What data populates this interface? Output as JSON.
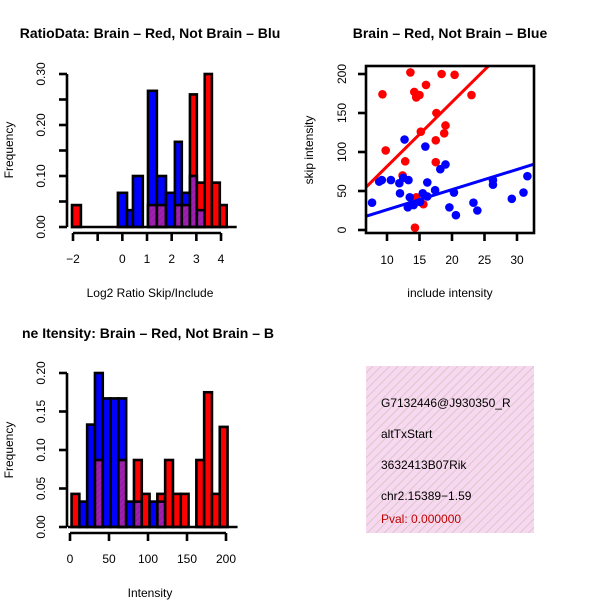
{
  "colors": {
    "red": "#ff0000",
    "blue": "#0000ff",
    "overlap": "#a020b0",
    "pval": "#c00000",
    "box_bg": "#f8d8f0"
  },
  "chart_data": [
    {
      "type": "bar",
      "title": "RatioData: Brain – Red, Not Brain – Blu",
      "xlabel": "Log2 Ratio Skip/Include",
      "ylabel": "Frequency",
      "xticks": [
        -2,
        -1,
        0,
        1,
        2,
        3,
        4
      ],
      "xtick_labels": [
        "−2",
        "",
        "0",
        "1",
        "2",
        "3",
        "4"
      ],
      "yticks": [
        0,
        0.05,
        0.1,
        0.15,
        0.2,
        0.25,
        0.3
      ],
      "ytick_labels": [
        "0.00",
        "",
        "0.10",
        "",
        "0.20",
        "",
        "0.30"
      ],
      "ylim": [
        0,
        0.3
      ],
      "series_names": [
        "Brain (red)",
        "Not Brain (blue)"
      ],
      "bins": [
        {
          "x0": -2.04,
          "x1": -1.68,
          "blue": 0,
          "red": 0.043
        },
        {
          "x0": -0.18,
          "x1": 0.19,
          "blue": 0.067,
          "red": 0
        },
        {
          "x0": 0.19,
          "x1": 0.43,
          "blue": 0.033,
          "red": 0
        },
        {
          "x0": 0.43,
          "x1": 0.83,
          "blue": 0.1,
          "red": 0
        },
        {
          "x0": 1.04,
          "x1": 1.4,
          "blue": 0.267,
          "red": 0.043
        },
        {
          "x0": 1.4,
          "x1": 1.77,
          "blue": 0.1,
          "red": 0.043
        },
        {
          "x0": 1.77,
          "x1": 2.13,
          "blue": 0.067,
          "red": 0
        },
        {
          "x0": 2.13,
          "x1": 2.41,
          "blue": 0.167,
          "red": 0.043
        },
        {
          "x0": 2.41,
          "x1": 2.74,
          "blue": 0.067,
          "red": 0.043
        },
        {
          "x0": 2.74,
          "x1": 3.02,
          "blue": 0.1,
          "red": 0.26
        },
        {
          "x0": 3.02,
          "x1": 3.34,
          "blue": 0.033,
          "red": 0.087
        },
        {
          "x0": 3.34,
          "x1": 3.63,
          "blue": 0,
          "red": 0.3
        },
        {
          "x0": 3.63,
          "x1": 3.95,
          "blue": 0,
          "red": 0.087
        },
        {
          "x0": 3.95,
          "x1": 4.23,
          "blue": 0,
          "red": 0.043
        }
      ]
    },
    {
      "type": "scatter",
      "title": "Brain – Red, Not Brain – Blue",
      "xlabel": "include intensity",
      "ylabel": "skip intensity",
      "xticks": [
        10,
        15,
        20,
        25,
        30
      ],
      "yticks": [
        0,
        50,
        100,
        150,
        200
      ],
      "xlim": [
        6.8,
        32.6
      ],
      "ylim": [
        -4,
        210
      ],
      "series": [
        {
          "name": "Brain",
          "color": "red",
          "points": [
            [
              9.3,
              174
            ],
            [
              9.8,
              102
            ],
            [
              13.6,
              202
            ],
            [
              14.2,
              177
            ],
            [
              15.0,
              173
            ],
            [
              14.5,
              170
            ],
            [
              16.0,
              186
            ],
            [
              18.4,
              200
            ],
            [
              20.4,
              199
            ],
            [
              23.0,
              173
            ],
            [
              17.6,
              150
            ],
            [
              15.2,
              126
            ],
            [
              19.0,
              134
            ],
            [
              18.8,
              124
            ],
            [
              17.5,
              115
            ],
            [
              12.8,
              88
            ],
            [
              17.5,
              87
            ],
            [
              12.4,
              70
            ],
            [
              14.5,
              42
            ],
            [
              15.6,
              33
            ],
            [
              14.3,
              3
            ]
          ],
          "fit": {
            "intercept": -1,
            "slope": 8.25
          }
        },
        {
          "name": "Not Brain",
          "color": "blue",
          "points": [
            [
              7.7,
              35
            ],
            [
              8.8,
              62
            ],
            [
              9.2,
              64
            ],
            [
              10.6,
              64
            ],
            [
              12.7,
              116
            ],
            [
              11.9,
              60
            ],
            [
              12.5,
              67
            ],
            [
              13.3,
              64
            ],
            [
              12.0,
              47
            ],
            [
              13.5,
              42
            ],
            [
              13.2,
              29
            ],
            [
              14.1,
              32
            ],
            [
              15.1,
              36
            ],
            [
              15.5,
              47
            ],
            [
              16.2,
              43
            ],
            [
              15.9,
              107
            ],
            [
              16.2,
              61
            ],
            [
              17.4,
              51
            ],
            [
              18.2,
              78
            ],
            [
              19.0,
              84
            ],
            [
              20.3,
              48
            ],
            [
              19.6,
              29
            ],
            [
              20.6,
              19
            ],
            [
              23.3,
              35
            ],
            [
              23.9,
              25
            ],
            [
              26.3,
              64
            ],
            [
              26.3,
              58
            ],
            [
              29.2,
              40
            ],
            [
              31.0,
              48
            ],
            [
              31.6,
              69
            ]
          ],
          "fit": {
            "intercept": 0.2,
            "slope": 2.58
          }
        }
      ]
    },
    {
      "type": "bar",
      "title": "ne Itensity: Brain – Red, Not Brain – B",
      "xlabel": "Intensity",
      "ylabel": "Frequency",
      "xticks": [
        0,
        50,
        100,
        150,
        200
      ],
      "xtick_labels": [
        "0",
        "50",
        "100",
        "150",
        "200"
      ],
      "yticks": [
        0,
        0.05,
        0.1,
        0.15,
        0.2
      ],
      "ytick_labels": [
        "0.00",
        "0.05",
        "0.10",
        "0.15",
        "0.20"
      ],
      "ylim": [
        0,
        0.2
      ],
      "bins": [
        {
          "x0": 2,
          "x1": 12,
          "blue": 0,
          "red": 0.043
        },
        {
          "x0": 12,
          "x1": 22,
          "blue": 0.033,
          "red": 0
        },
        {
          "x0": 22,
          "x1": 32,
          "blue": 0.133,
          "red": 0
        },
        {
          "x0": 32,
          "x1": 42,
          "blue": 0.2,
          "red": 0.087
        },
        {
          "x0": 42,
          "x1": 52,
          "blue": 0.167,
          "red": 0
        },
        {
          "x0": 52,
          "x1": 62,
          "blue": 0.167,
          "red": 0
        },
        {
          "x0": 62,
          "x1": 72,
          "blue": 0.167,
          "red": 0.087
        },
        {
          "x0": 72,
          "x1": 82,
          "blue": 0.033,
          "red": 0
        },
        {
          "x0": 82,
          "x1": 92,
          "blue": 0.033,
          "red": 0.087
        },
        {
          "x0": 92,
          "x1": 102,
          "blue": 0,
          "red": 0.043
        },
        {
          "x0": 102,
          "x1": 112,
          "blue": 0.033,
          "red": 0
        },
        {
          "x0": 112,
          "x1": 122,
          "blue": 0.033,
          "red": 0.043
        },
        {
          "x0": 122,
          "x1": 132,
          "blue": 0,
          "red": 0.087
        },
        {
          "x0": 132,
          "x1": 142,
          "blue": 0,
          "red": 0.043
        },
        {
          "x0": 142,
          "x1": 152,
          "blue": 0,
          "red": 0.043
        },
        {
          "x0": 152,
          "x1": 162,
          "blue": 0,
          "red": 0
        },
        {
          "x0": 162,
          "x1": 172,
          "blue": 0,
          "red": 0.087
        },
        {
          "x0": 172,
          "x1": 182,
          "blue": 0,
          "red": 0.175
        },
        {
          "x0": 182,
          "x1": 192,
          "blue": 0,
          "red": 0.043
        },
        {
          "x0": 192,
          "x1": 202,
          "blue": 0,
          "red": 0.13
        }
      ]
    }
  ],
  "info": {
    "probe_id": "G7132446@J930350_R",
    "event_type": "altTxStart",
    "gene": "3632413B07Rik",
    "location": "chr2.15389−1.59",
    "pval": "Pval: 0.000000"
  }
}
